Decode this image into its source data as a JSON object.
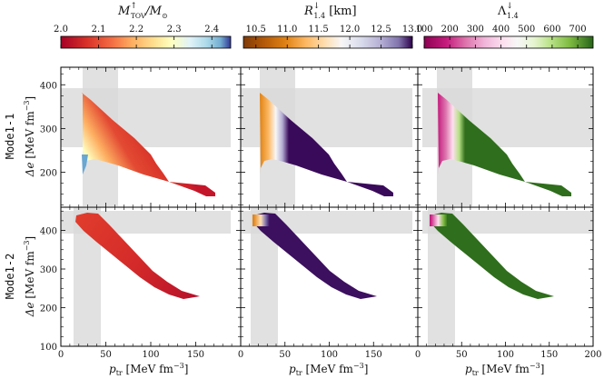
{
  "colorbars": [
    {
      "label": "M_TOV↑/M_⊙",
      "ticks": [
        "2.0",
        "2.1",
        "2.2",
        "2.3",
        "2.4"
      ],
      "tick_values": [
        2.0,
        2.1,
        2.2,
        2.3,
        2.4
      ],
      "range": [
        2.0,
        2.45
      ],
      "colormap": "RdYlBu"
    },
    {
      "label": "R_1.4↓ [km]",
      "ticks": [
        "10.5",
        "11.0",
        "11.5",
        "12.0",
        "12.5",
        "13.0"
      ],
      "tick_values": [
        10.5,
        11.0,
        11.5,
        12.0,
        12.5,
        13.0
      ],
      "range": [
        10.3,
        13.0
      ],
      "colormap": "PuOr"
    },
    {
      "label": "Λ_1.4↓",
      "ticks": [
        "100",
        "200",
        "300",
        "400",
        "500",
        "600",
        "700"
      ],
      "tick_values": [
        100,
        200,
        300,
        400,
        500,
        600,
        700
      ],
      "range": [
        100,
        760
      ],
      "colormap": "PiYG"
    }
  ],
  "cb_label_parts": {
    "m_main": "M",
    "m_sup": "↑",
    "m_sub": "TOV",
    "m_rest": "/M",
    "m_sun": "⊙",
    "r_main": "R",
    "r_sup": "↓",
    "r_sub": "1.4",
    "r_unit": " [km]",
    "l_main": "Λ",
    "l_sup": "↓",
    "l_sub": "1.4"
  },
  "rows": [
    {
      "model": "Mode1-1",
      "ylim": [
        120,
        440
      ],
      "yticks": [
        "200",
        "300",
        "400"
      ],
      "ytick_values": [
        200,
        300,
        400
      ]
    },
    {
      "model": "Mode1-2",
      "ylim": [
        100,
        460
      ],
      "yticks": [
        "100",
        "200",
        "300",
        "400"
      ],
      "ytick_values": [
        100,
        200,
        300,
        400
      ]
    }
  ],
  "axes": {
    "xlabel_main": "p",
    "xlabel_sub": "tr",
    "xlabel_unit": " [MeV fm",
    "xlabel_exp": "−3",
    "xlabel_close": "]",
    "ylabel_main": "Δe",
    "ylabel_unit": " [MeV fm",
    "ylabel_exp": "−3",
    "ylabel_close": "]",
    "xlim": [
      0,
      200
    ],
    "xticks_first": [
      "0",
      "50",
      "100",
      "150"
    ],
    "xticks_mid": [
      "0",
      "50",
      "100",
      "150"
    ],
    "xticks_last": [
      "0",
      "50",
      "100",
      "150",
      "200"
    ],
    "xtick_values": [
      0,
      50,
      100,
      150,
      200
    ]
  },
  "chart_data": [
    {
      "type": "scatter",
      "row": "Mode1-1",
      "color_by": "M_TOV",
      "title": "",
      "region": {
        "p_tr": [
          27,
          175
        ],
        "delta_e_top": [
          387,
          130
        ],
        "delta_e_bottom": [
          170,
          130
        ]
      },
      "shaded_bands": {
        "p_tr": [
          27,
          65
        ],
        "delta_e": [
          245,
          398
        ]
      }
    },
    {
      "type": "scatter",
      "row": "Mode1-2",
      "color_by": "M_TOV",
      "title": "",
      "region": {
        "p_tr": [
          20,
          155
        ],
        "delta_e_top": [
          437,
          220
        ],
        "delta_e_bottom": [
          415,
          215
        ]
      },
      "shaded_bands": {
        "p_tr": [
          15,
          45
        ],
        "delta_e": [
          383,
          440
        ]
      }
    }
  ]
}
